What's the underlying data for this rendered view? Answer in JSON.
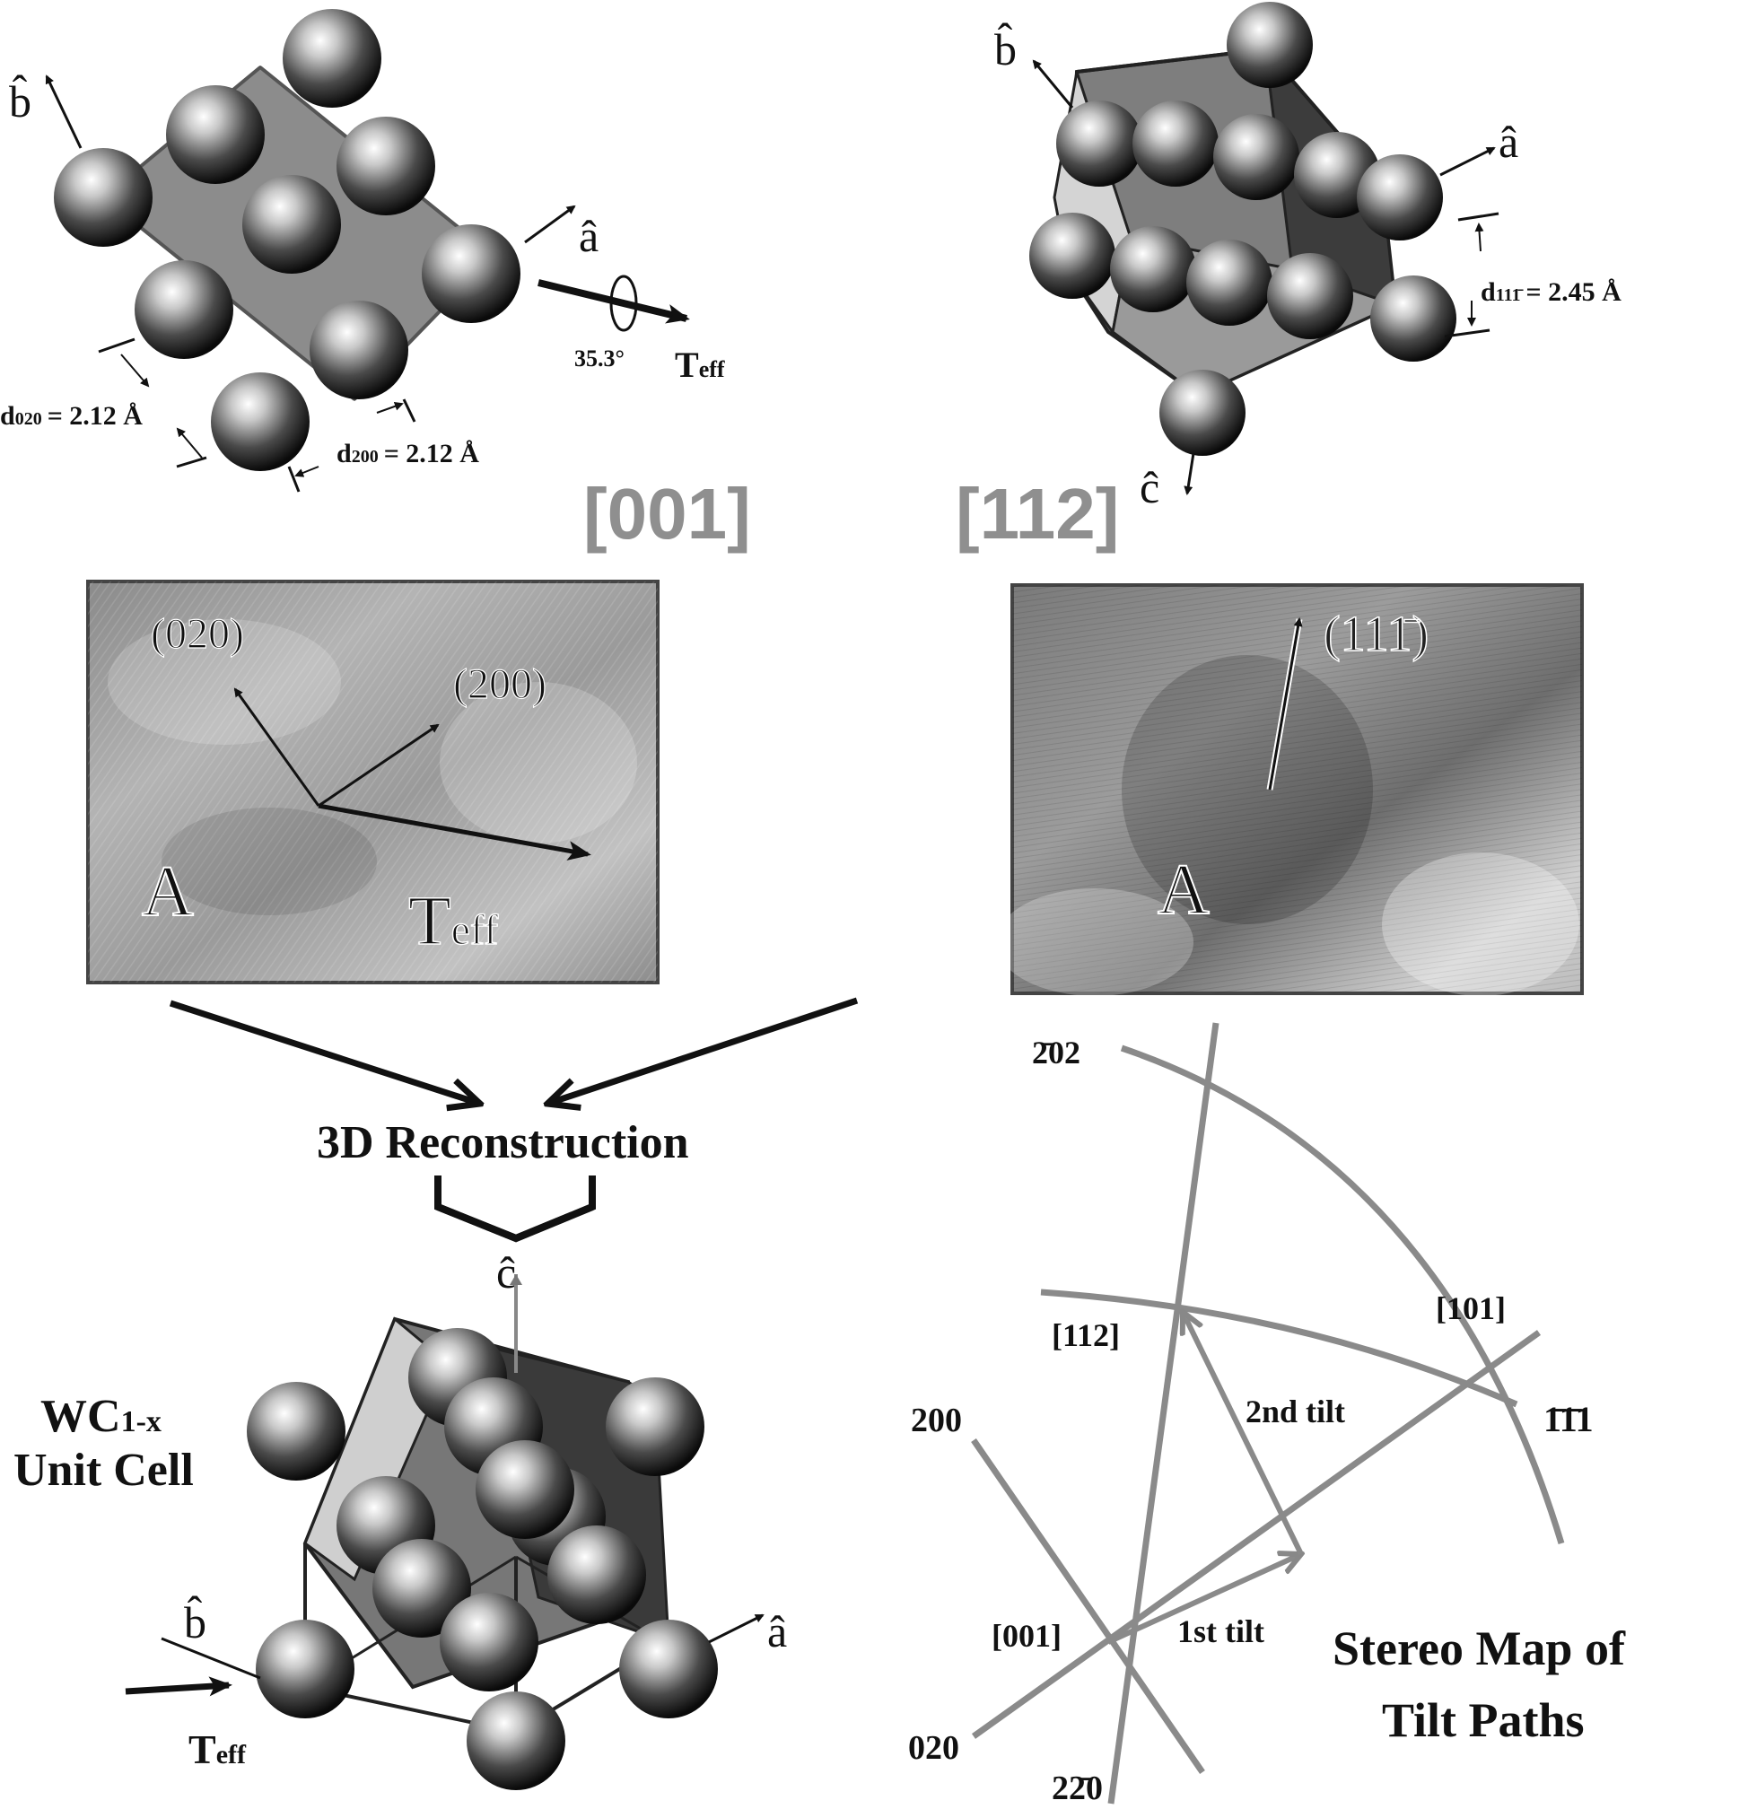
{
  "panel_001": {
    "axis_b": "b̂",
    "axis_a": "â",
    "angle": "35.3°",
    "t_eff": "T",
    "t_eff_sub": "eff",
    "d020_label": "d",
    "d020_sub": "020",
    "d020_value": "= 2.12 Å",
    "d200_label": "d",
    "d200_sub": "200",
    "d200_value": "= 2.12 Å",
    "zone": "[001]"
  },
  "panel_112": {
    "axis_b": "b̂",
    "axis_a": "â",
    "axis_c": "ĉ",
    "d11_label": "d",
    "d11_sub": "111̄",
    "d11_value": "= 2.45 Å",
    "zone": "[112]"
  },
  "image_a": {
    "label_020": "(020)",
    "label_200": "(200)",
    "label_A": "A",
    "t_eff": "T",
    "t_eff_sub": "eff"
  },
  "image_b": {
    "label_11": "(111̄)",
    "label_A": "A"
  },
  "reconstruction": {
    "title": "3D Reconstruction",
    "axis_c": "ĉ"
  },
  "unit_cell": {
    "line1": "WC",
    "line1_sub": "1-x",
    "line2": "Unit Cell",
    "axis_b": "b̂",
    "axis_a": "â",
    "t_eff": "T",
    "t_eff_sub": "eff"
  },
  "stereo": {
    "p_202": "2̄02",
    "p_112": "[112]",
    "p_101": "[101]",
    "p_111": "1̄1̄1",
    "p_200": "200",
    "p_001": "[001]",
    "p_020": "020",
    "p_220": "22̄0",
    "tilt1": "1st tilt",
    "tilt2": "2nd tilt",
    "title1": "Stereo Map of",
    "title2": "Tilt Paths"
  }
}
